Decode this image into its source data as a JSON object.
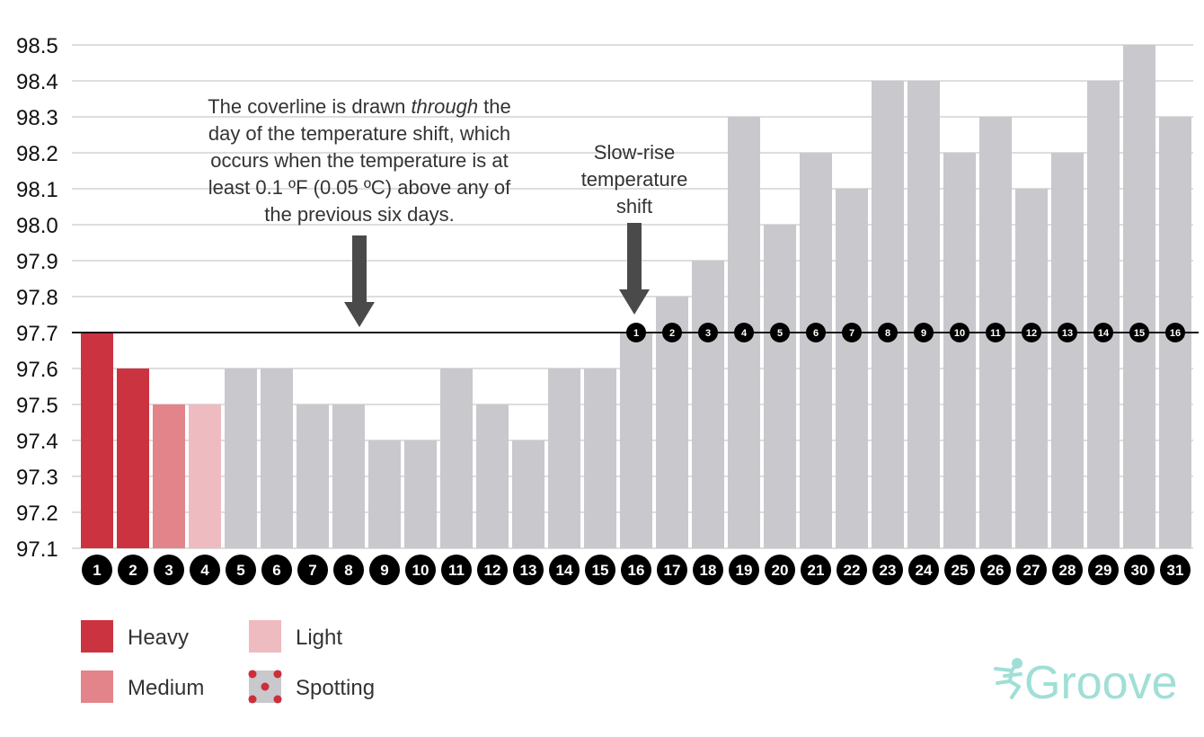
{
  "chart_data": {
    "type": "bar",
    "categories": [
      "1",
      "2",
      "3",
      "4",
      "5",
      "6",
      "7",
      "8",
      "9",
      "10",
      "11",
      "12",
      "13",
      "14",
      "15",
      "16",
      "17",
      "18",
      "19",
      "20",
      "21",
      "22",
      "23",
      "24",
      "25",
      "26",
      "27",
      "28",
      "29",
      "30",
      "31"
    ],
    "values": [
      97.7,
      97.6,
      97.5,
      97.5,
      97.6,
      97.6,
      97.5,
      97.5,
      97.4,
      97.4,
      97.6,
      97.5,
      97.4,
      97.6,
      97.6,
      97.7,
      97.8,
      97.9,
      98.3,
      98.0,
      98.2,
      98.1,
      98.4,
      98.4,
      98.2,
      98.3,
      98.1,
      98.2,
      98.4,
      98.5,
      98.3
    ],
    "flow": [
      "heavy",
      "heavy",
      "medium",
      "light",
      "none",
      "none",
      "none",
      "none",
      "none",
      "none",
      "none",
      "none",
      "none",
      "none",
      "none",
      "none",
      "none",
      "none",
      "none",
      "none",
      "none",
      "none",
      "none",
      "none",
      "none",
      "none",
      "none",
      "none",
      "none",
      "none",
      "none"
    ],
    "ylim": [
      97.1,
      98.5
    ],
    "yticks": [
      "97.1",
      "97.2",
      "97.3",
      "97.4",
      "97.5",
      "97.6",
      "97.7",
      "97.8",
      "97.9",
      "98.0",
      "98.1",
      "98.2",
      "98.3",
      "98.4",
      "98.5"
    ],
    "coverline": 97.7,
    "post_shift_start_day": 16,
    "post_shift_labels": [
      "1",
      "2",
      "3",
      "4",
      "5",
      "6",
      "7",
      "8",
      "9",
      "10",
      "11",
      "12",
      "13",
      "14",
      "15",
      "16"
    ],
    "grid": true,
    "colors": {
      "heavy": "#cc3340",
      "medium": "#e2848a",
      "light": "#eebbc0",
      "none": "#c8c8cd",
      "spotting_dot": "#cc2e3a",
      "arrow": "#4a4a4a",
      "brand": "#9fdfd6"
    },
    "annotations": [
      {
        "lines": [
          "The coverline is drawn |through| the",
          "day of the temperature shift, which",
          "occurs when the temperature is at",
          "least 0.1 ºF (0.05 ºC) above any of",
          "the previous six days."
        ],
        "arrow_day": 8.3
      },
      {
        "lines": [
          "Slow-rise",
          "temperature",
          "shift"
        ],
        "arrow_day": 16
      }
    ],
    "legend": [
      {
        "key": "heavy",
        "label": "Heavy"
      },
      {
        "key": "medium",
        "label": "Medium"
      },
      {
        "key": "light",
        "label": "Light"
      },
      {
        "key": "spotting",
        "label": "Spotting"
      }
    ]
  },
  "brand": {
    "name": "Groove",
    "icon": "dancer-icon"
  }
}
